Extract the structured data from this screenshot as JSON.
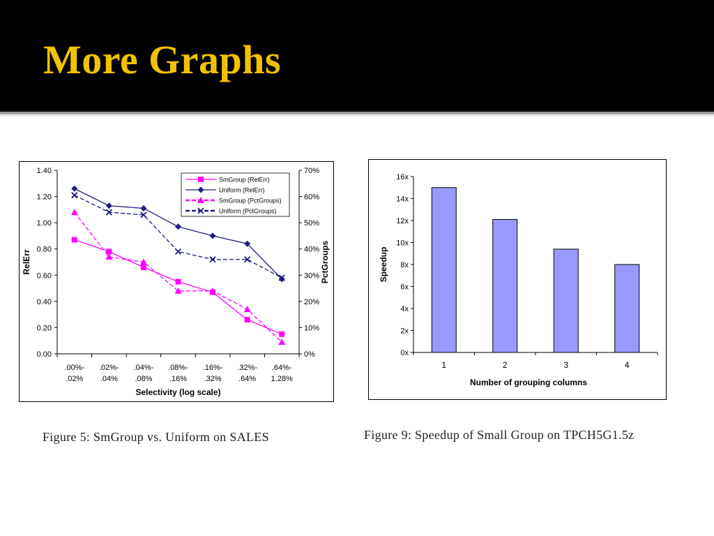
{
  "slide": {
    "title": "More Graphs",
    "caption_left": "Figure 5: SmGroup vs. Uniform on SALES",
    "caption_right": "Figure 9: Speedup of Small Group on TPCH5G1.5z"
  },
  "colors": {
    "title": "#f2c200",
    "smgroup": "#ff00ff",
    "uniform": "#1c1c7c",
    "bar": "#9999ff"
  },
  "chart_data": [
    {
      "type": "line",
      "title": "",
      "xlabel": "Selectivity (log scale)",
      "ylabel": "RelErr",
      "y2label": "PctGroups",
      "categories": [
        [
          ".00%-",
          ".02%"
        ],
        [
          ".02%-",
          ".04%"
        ],
        [
          ".04%-",
          ".08%"
        ],
        [
          ".08%-",
          ".16%"
        ],
        [
          ".16%-",
          ".32%"
        ],
        [
          ".32%-",
          ".64%"
        ],
        [
          ".64%-",
          "1.28%"
        ]
      ],
      "ylim": [
        0,
        1.4
      ],
      "yticks": [
        "0.00",
        "0.20",
        "0.40",
        "0.60",
        "0.80",
        "1.00",
        "1.20",
        "1.40"
      ],
      "y2lim": [
        0,
        70
      ],
      "y2ticks": [
        "0%",
        "10%",
        "20%",
        "30%",
        "40%",
        "50%",
        "60%",
        "70%"
      ],
      "legend_position": "top-right",
      "series": [
        {
          "name": "SmGroup (RelErr)",
          "axis": "left",
          "marker": "square",
          "dash": false,
          "color": "#ff00ff",
          "values": [
            0.87,
            0.78,
            0.66,
            0.55,
            0.47,
            0.26,
            0.15
          ]
        },
        {
          "name": "Uniform (RelErr)",
          "axis": "left",
          "marker": "diamond",
          "dash": false,
          "color": "#1c1c7c",
          "values": [
            1.26,
            1.13,
            1.11,
            0.97,
            0.9,
            0.84,
            0.57
          ]
        },
        {
          "name": "SmGroup (PctGroups)",
          "axis": "right",
          "marker": "triangle",
          "dash": true,
          "color": "#ff00ff",
          "values": [
            54,
            37,
            35,
            24,
            24,
            17,
            4.5
          ]
        },
        {
          "name": "Uniform (PctGroups)",
          "axis": "right",
          "marker": "x",
          "dash": true,
          "color": "#1c1c7c",
          "values": [
            60.5,
            54,
            53,
            39,
            36,
            36,
            29
          ]
        }
      ]
    },
    {
      "type": "bar",
      "title": "",
      "xlabel": "Number of grouping columns",
      "ylabel": "Speedup",
      "categories": [
        "1",
        "2",
        "3",
        "4"
      ],
      "values": [
        15.0,
        12.1,
        9.4,
        8.0
      ],
      "ylim": [
        0,
        16
      ],
      "yticks": [
        "0x",
        "2x",
        "4x",
        "6x",
        "8x",
        "10x",
        "12x",
        "14x",
        "16x"
      ],
      "color": "#9999ff"
    }
  ]
}
